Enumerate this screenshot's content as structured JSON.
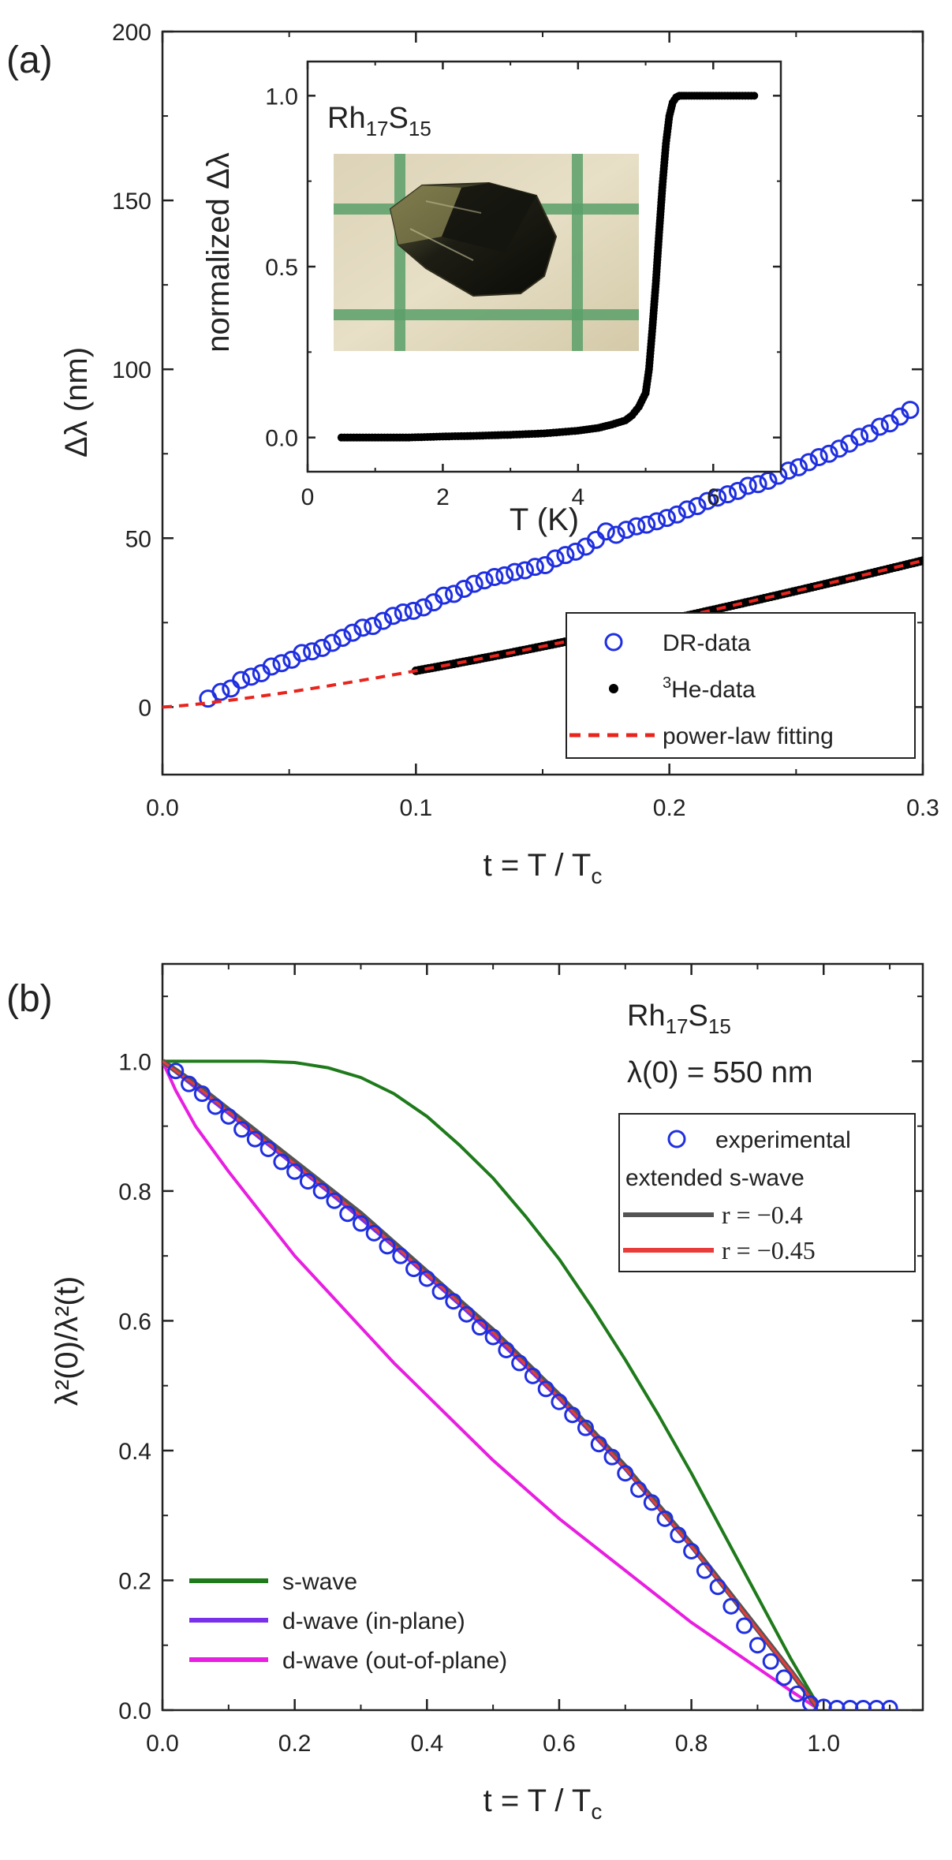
{
  "chart_data": [
    {
      "panel": "(a)",
      "type": "scatter",
      "xlabel": "t = T / T",
      "xlabel_sub": "c",
      "ylabel": "Δλ (nm)",
      "xlim": [
        0.0,
        0.3
      ],
      "ylim": [
        -20,
        200
      ],
      "xticks": [
        0.0,
        0.1,
        0.2,
        0.3
      ],
      "yticks": [
        0,
        50,
        100,
        150,
        200
      ],
      "legend_position": "bottom-right",
      "legend": {
        "dr": "DR-data",
        "he_sup": "3",
        "he": "He-data",
        "fit": "power-law fitting"
      },
      "series": [
        {
          "name": "DR-data",
          "style": "open-circle",
          "color": "#1f2fe0",
          "x": [
            0.018,
            0.023,
            0.027,
            0.031,
            0.035,
            0.039,
            0.043,
            0.047,
            0.051,
            0.055,
            0.059,
            0.063,
            0.067,
            0.071,
            0.075,
            0.079,
            0.083,
            0.087,
            0.091,
            0.095,
            0.099,
            0.103,
            0.107,
            0.111,
            0.115,
            0.119,
            0.123,
            0.127,
            0.131,
            0.135,
            0.139,
            0.143,
            0.147,
            0.151,
            0.155,
            0.159,
            0.163,
            0.167,
            0.171,
            0.175,
            0.179,
            0.183,
            0.187,
            0.191,
            0.195,
            0.199,
            0.203,
            0.207,
            0.211,
            0.215,
            0.219,
            0.223,
            0.227,
            0.231,
            0.235,
            0.239,
            0.243,
            0.247,
            0.251,
            0.255,
            0.259,
            0.263,
            0.267,
            0.271,
            0.275,
            0.279,
            0.283,
            0.287,
            0.291,
            0.295
          ],
          "y": [
            2.5,
            4.5,
            5.5,
            8,
            9,
            10,
            12,
            13,
            14,
            16,
            16.5,
            17.5,
            19,
            20.5,
            22,
            23.5,
            24,
            25.5,
            27,
            28,
            28.5,
            29.5,
            31,
            33,
            33.5,
            35,
            36.5,
            37.5,
            38.5,
            39,
            40,
            40.5,
            41.5,
            42,
            44,
            45,
            46,
            47.5,
            49.5,
            52,
            51,
            52.5,
            53.5,
            54,
            55,
            56,
            57,
            58.5,
            59.5,
            61,
            62,
            63,
            64,
            65.5,
            66,
            67,
            68.5,
            70,
            71,
            72.5,
            74,
            75,
            76.5,
            78,
            80,
            81,
            83,
            84,
            86,
            88
          ]
        },
        {
          "name": "3He-data",
          "style": "filled-dot",
          "color": "#000000",
          "fit_formula": "A*t^n",
          "A": 200,
          "n": 1.27,
          "x_start": 0.1,
          "x_end": 0.3
        },
        {
          "name": "power-law fitting",
          "style": "dashed-line",
          "color": "#e8241d",
          "fit_formula": "A*t^n",
          "A": 200,
          "n": 1.27,
          "x_start": 0.0,
          "x_end": 0.3
        }
      ],
      "inset": {
        "type": "line",
        "annotation": "Rh",
        "annotation_sub1": "17",
        "annotation_mid": "S",
        "annotation_sub2": "15",
        "xlabel": "T (K)",
        "ylabel": "normalized Δλ",
        "xlim": [
          0,
          7
        ],
        "ylim": [
          -0.1,
          1.1
        ],
        "xticks": [
          0,
          2,
          4,
          6
        ],
        "yticks": [
          0.0,
          0.5,
          1.0
        ],
        "series": [
          {
            "name": "normalized Δλ",
            "color": "#000000",
            "T": [
              0.5,
              1.0,
              1.5,
              2.0,
              2.5,
              3.0,
              3.5,
              4.0,
              4.3,
              4.5,
              4.7,
              4.8,
              4.9,
              5.0,
              5.05,
              5.1,
              5.15,
              5.2,
              5.25,
              5.3,
              5.35,
              5.4,
              5.45,
              5.5,
              5.6,
              5.8,
              6.0,
              6.3,
              6.65
            ],
            "value": [
              0.0,
              0.0,
              0.0,
              0.003,
              0.005,
              0.008,
              0.012,
              0.02,
              0.028,
              0.038,
              0.05,
              0.065,
              0.09,
              0.13,
              0.2,
              0.32,
              0.45,
              0.6,
              0.74,
              0.86,
              0.94,
              0.98,
              0.995,
              1.0,
              1.0,
              1.0,
              1.0,
              1.0,
              1.0
            ]
          }
        ]
      }
    },
    {
      "panel": "(b)",
      "type": "line",
      "xlabel": "t = T / T",
      "xlabel_sub": "c",
      "ylabel": "λ²(0)/λ²(t)",
      "xlim": [
        0.0,
        1.15
      ],
      "ylim": [
        0.0,
        1.15
      ],
      "xticks": [
        0.0,
        0.2,
        0.4,
        0.6,
        0.8,
        1.0
      ],
      "yticks": [
        0.0,
        0.2,
        0.4,
        0.6,
        0.8,
        1.0
      ],
      "annotation_compound": "Rh",
      "annotation_sub1": "17",
      "annotation_mid": "S",
      "annotation_sub2": "15",
      "annotation_lambda": "λ(0) = 550 nm",
      "legend_top": {
        "experimental": "experimental",
        "header": "extended s-wave",
        "r1": "r = −0.4",
        "r2": "r = −0.45"
      },
      "legend_bottom": {
        "s": "s-wave",
        "d_in": "d-wave (in-plane)",
        "d_out": "d-wave (out-of-plane)"
      },
      "series": [
        {
          "name": "experimental",
          "style": "open-circle",
          "color": "#1f2fe0",
          "x": [
            0.02,
            0.04,
            0.06,
            0.08,
            0.1,
            0.12,
            0.14,
            0.16,
            0.18,
            0.2,
            0.22,
            0.24,
            0.26,
            0.28,
            0.3,
            0.32,
            0.34,
            0.36,
            0.38,
            0.4,
            0.42,
            0.44,
            0.46,
            0.48,
            0.5,
            0.52,
            0.54,
            0.56,
            0.58,
            0.6,
            0.62,
            0.64,
            0.66,
            0.68,
            0.7,
            0.72,
            0.74,
            0.76,
            0.78,
            0.8,
            0.82,
            0.84,
            0.86,
            0.88,
            0.9,
            0.92,
            0.94,
            0.96,
            0.98,
            1.0,
            1.02,
            1.04,
            1.06,
            1.08,
            1.1
          ],
          "y": [
            0.985,
            0.965,
            0.95,
            0.93,
            0.915,
            0.895,
            0.88,
            0.865,
            0.845,
            0.83,
            0.815,
            0.8,
            0.785,
            0.765,
            0.75,
            0.735,
            0.715,
            0.7,
            0.68,
            0.665,
            0.645,
            0.63,
            0.61,
            0.59,
            0.575,
            0.555,
            0.535,
            0.515,
            0.495,
            0.475,
            0.455,
            0.435,
            0.41,
            0.39,
            0.365,
            0.34,
            0.32,
            0.295,
            0.27,
            0.245,
            0.215,
            0.19,
            0.16,
            0.13,
            0.1,
            0.075,
            0.05,
            0.025,
            0.01,
            0.005,
            0.003,
            0.003,
            0.003,
            0.003,
            0.003
          ]
        },
        {
          "name": "r = −0.4",
          "color": "#545454",
          "x": [
            0.0,
            0.05,
            0.1,
            0.15,
            0.2,
            0.25,
            0.3,
            0.35,
            0.4,
            0.45,
            0.5,
            0.55,
            0.6,
            0.65,
            0.7,
            0.75,
            0.8,
            0.85,
            0.9,
            0.95,
            0.99
          ],
          "y": [
            1.0,
            0.965,
            0.925,
            0.885,
            0.845,
            0.805,
            0.765,
            0.72,
            0.675,
            0.63,
            0.585,
            0.535,
            0.485,
            0.43,
            0.375,
            0.315,
            0.255,
            0.19,
            0.125,
            0.06,
            0.005
          ]
        },
        {
          "name": "r = −0.45",
          "color": "#ea3b3b",
          "x": [
            0.0,
            0.05,
            0.1,
            0.15,
            0.2,
            0.25,
            0.3,
            0.35,
            0.4,
            0.45,
            0.5,
            0.55,
            0.6,
            0.65,
            0.7,
            0.75,
            0.8,
            0.85,
            0.9,
            0.95,
            0.99
          ],
          "y": [
            1.0,
            0.963,
            0.922,
            0.882,
            0.842,
            0.802,
            0.762,
            0.717,
            0.672,
            0.627,
            0.582,
            0.532,
            0.482,
            0.428,
            0.373,
            0.313,
            0.253,
            0.189,
            0.124,
            0.06,
            0.005
          ]
        },
        {
          "name": "s-wave",
          "color": "#1e7a1a",
          "x": [
            0.0,
            0.05,
            0.1,
            0.15,
            0.2,
            0.25,
            0.3,
            0.35,
            0.4,
            0.45,
            0.5,
            0.55,
            0.6,
            0.65,
            0.7,
            0.75,
            0.8,
            0.85,
            0.9,
            0.95,
            0.99
          ],
          "y": [
            1.0,
            1.0,
            1.0,
            1.0,
            0.998,
            0.99,
            0.975,
            0.95,
            0.915,
            0.87,
            0.82,
            0.76,
            0.695,
            0.62,
            0.54,
            0.455,
            0.365,
            0.27,
            0.175,
            0.08,
            0.01
          ]
        },
        {
          "name": "d-wave (in-plane)",
          "color": "#7a2fe8",
          "x": [
            0.0,
            0.05,
            0.1,
            0.15,
            0.2,
            0.25,
            0.3,
            0.35,
            0.4,
            0.45,
            0.5,
            0.55,
            0.6,
            0.65,
            0.7,
            0.75,
            0.8,
            0.85,
            0.9,
            0.95,
            0.99
          ],
          "y": [
            1.0,
            0.96,
            0.92,
            0.88,
            0.84,
            0.8,
            0.758,
            0.715,
            0.67,
            0.625,
            0.578,
            0.53,
            0.48,
            0.426,
            0.372,
            0.312,
            0.252,
            0.188,
            0.123,
            0.058,
            0.004
          ]
        },
        {
          "name": "d-wave (out-of-plane)",
          "color": "#e81ee0",
          "x": [
            0.0,
            0.02,
            0.05,
            0.1,
            0.15,
            0.2,
            0.25,
            0.3,
            0.35,
            0.4,
            0.45,
            0.5,
            0.55,
            0.6,
            0.65,
            0.7,
            0.75,
            0.8,
            0.85,
            0.9,
            0.95,
            0.99
          ],
          "y": [
            1.0,
            0.955,
            0.9,
            0.83,
            0.765,
            0.7,
            0.645,
            0.59,
            0.535,
            0.485,
            0.435,
            0.385,
            0.34,
            0.295,
            0.255,
            0.215,
            0.175,
            0.135,
            0.1,
            0.065,
            0.03,
            0.003
          ]
        }
      ]
    }
  ]
}
